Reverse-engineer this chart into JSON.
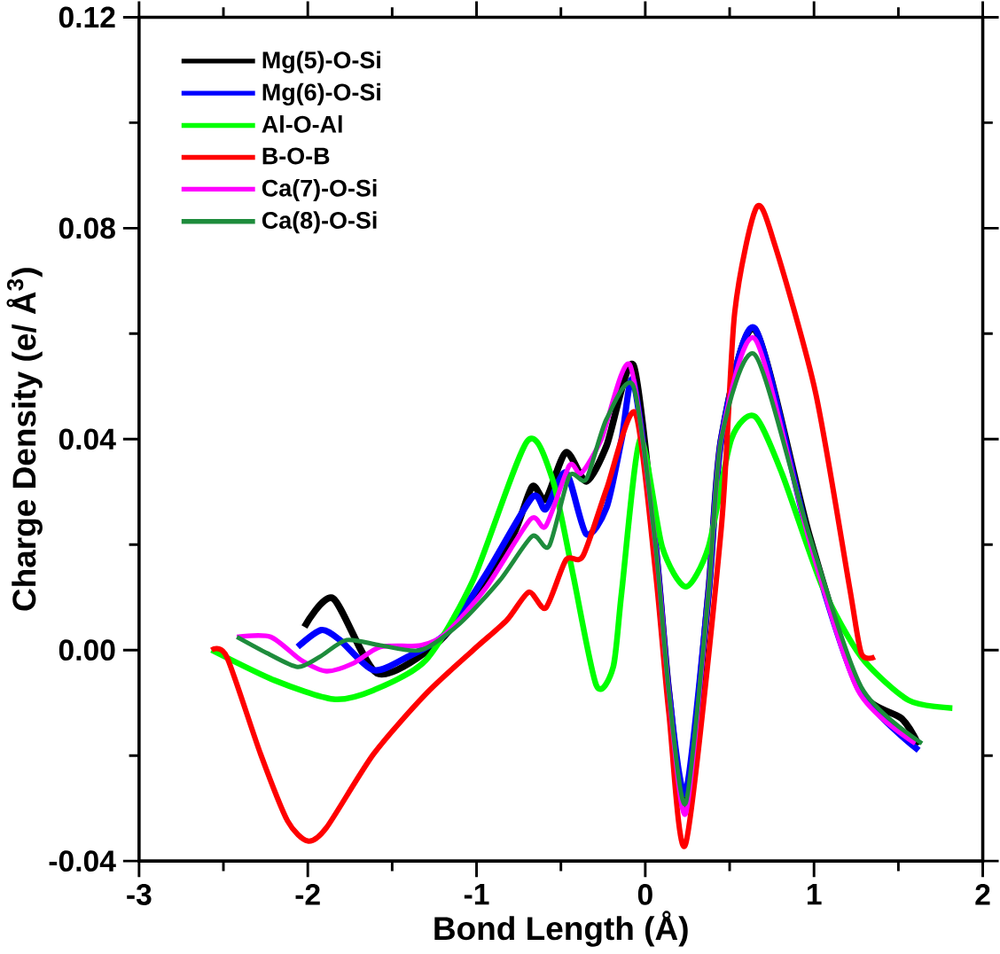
{
  "chart_data": {
    "type": "line",
    "xlabel": "Bond Length (Å)",
    "ylabel": "Charge Density (e/ Å$^{3}$)",
    "xlim": [
      -3,
      2
    ],
    "ylim": [
      -0.04,
      0.12
    ],
    "xticks": [
      -3,
      {
        "value": -2.5,
        "label": null
      },
      -2,
      {
        "value": -1.5,
        "label": null
      },
      -1,
      {
        "value": -0.5,
        "label": null
      },
      0,
      {
        "value": 0.5,
        "label": null
      },
      1,
      {
        "value": 1.5,
        "label": null
      },
      2
    ],
    "yticks": [
      {
        "value": -0.04,
        "label": "-0.04"
      },
      {
        "value": -0.02,
        "label": null
      },
      {
        "value": 0,
        "label": "0.00"
      },
      {
        "value": 0.02,
        "label": null
      },
      {
        "value": 0.04,
        "label": "0.04"
      },
      {
        "value": 0.06,
        "label": null
      },
      {
        "value": 0.08,
        "label": "0.08"
      },
      {
        "value": 0.1,
        "label": null
      },
      {
        "value": 0.12,
        "label": "0.12"
      }
    ],
    "grid": false,
    "legend": "top left",
    "marker": "none",
    "line_style": "solid",
    "series": [
      {
        "name": "Mg(5)-O-Si",
        "color": "#000000",
        "x": [
          -2.02,
          -1.85,
          -1.59,
          -1.26,
          -1.02,
          -0.78,
          -0.67,
          -0.59,
          -0.47,
          -0.35,
          -0.23,
          -0.07,
          0.06,
          0.14,
          0.24,
          0.375,
          0.45,
          0.65,
          0.97,
          1.26,
          1.52,
          1.62
        ],
        "values": [
          0.0044,
          0.0098,
          -0.0044,
          0.0006,
          0.0095,
          0.022,
          0.031,
          0.0286,
          0.0375,
          0.032,
          0.0387,
          0.054,
          0.02,
          -0.008,
          -0.03,
          0.011,
          0.04,
          0.0608,
          0.022,
          -0.007,
          -0.013,
          -0.018
        ]
      },
      {
        "name": "Mg(6)-O-Si",
        "color": "#0000ff",
        "x": [
          -2.06,
          -1.92,
          -1.81,
          -1.61,
          -1.41,
          -1.18,
          -0.94,
          -0.67,
          -0.59,
          -0.47,
          -0.35,
          -0.23,
          -0.14,
          -0.07,
          0.06,
          0.14,
          0.24,
          0.375,
          0.45,
          0.65,
          0.97,
          1.26,
          1.62
        ],
        "values": [
          0.0006,
          0.0038,
          0.0019,
          -0.0038,
          -0.0013,
          0.0032,
          0.0146,
          0.029,
          0.0267,
          0.0337,
          0.022,
          0.027,
          0.04,
          0.051,
          0.02,
          -0.008,
          -0.027,
          0.011,
          0.04,
          0.061,
          0.021,
          -0.007,
          -0.019
        ]
      },
      {
        "name": "Al-O-Al",
        "color": "#00ff00",
        "x": [
          -2.57,
          -2.2,
          -1.85,
          -1.61,
          -1.3,
          -1.02,
          -0.7,
          -0.55,
          -0.43,
          -0.29,
          -0.19,
          -0.14,
          -0.03,
          0.1,
          0.24,
          0.375,
          0.51,
          0.65,
          0.81,
          1.05,
          1.28,
          1.56,
          1.82
        ],
        "values": [
          0,
          -0.0057,
          -0.0093,
          -0.0076,
          -0.0019,
          0.0133,
          0.0396,
          0.0324,
          0.0146,
          -0.0067,
          -0.0032,
          0.011,
          0.04,
          0.0196,
          0.012,
          0.0196,
          0.04,
          0.0443,
          0.0335,
          0.012,
          -0.0013,
          -0.0095,
          -0.011
        ]
      },
      {
        "name": "B-O-B",
        "color": "#ff0000",
        "x": [
          -2.57,
          -2.48,
          -2.28,
          -2.12,
          -2.0,
          -1.89,
          -1.61,
          -1.3,
          -1.02,
          -0.82,
          -0.69,
          -0.59,
          -0.47,
          -0.37,
          -0.23,
          -0.06,
          0.06,
          0.14,
          0.24,
          0.45,
          0.53,
          0.66,
          0.77,
          1.01,
          1.21,
          1.28,
          1.36
        ],
        "values": [
          0,
          -0.0013,
          -0.0197,
          -0.0324,
          -0.0362,
          -0.0337,
          -0.0197,
          -0.0083,
          0,
          0.0057,
          0.011,
          0.008,
          0.0171,
          0.0178,
          0.0305,
          0.045,
          0.015,
          -0.012,
          -0.0367,
          0.023,
          0.064,
          0.084,
          0.0766,
          0.0487,
          0.012,
          -0.0006,
          -0.0013
        ]
      },
      {
        "name": "Ca(7)-O-Si",
        "color": "#ff00ff",
        "x": [
          -2.42,
          -2.22,
          -2.04,
          -1.89,
          -1.73,
          -1.57,
          -1.33,
          -1.18,
          -0.94,
          -0.68,
          -0.59,
          -0.45,
          -0.38,
          -0.26,
          -0.09,
          0.06,
          0.14,
          0.24,
          0.375,
          0.45,
          0.65,
          0.97,
          1.26,
          1.6
        ],
        "values": [
          0.0025,
          0.0025,
          -0.0019,
          -0.004,
          -0.0025,
          0.0006,
          0.0009,
          0.0032,
          0.012,
          0.0248,
          0.0235,
          0.035,
          0.0335,
          0.04,
          0.054,
          0.02,
          -0.008,
          -0.031,
          0.011,
          0.04,
          0.059,
          0.021,
          -0.0076,
          -0.0177
        ]
      },
      {
        "name": "Ca(8)-O-Si",
        "color": "#1e8c3c",
        "x": [
          -2.42,
          -2.24,
          -2.06,
          -1.93,
          -1.77,
          -1.57,
          -1.33,
          -1.1,
          -0.86,
          -0.67,
          -0.57,
          -0.45,
          -0.35,
          -0.23,
          -0.07,
          0.06,
          0.14,
          0.24,
          0.375,
          0.45,
          0.65,
          0.97,
          1.28,
          1.64
        ],
        "values": [
          0.0025,
          -0.0006,
          -0.0032,
          -0.0013,
          0.0019,
          0.0009,
          0,
          0.005,
          0.0133,
          0.0216,
          0.0197,
          0.033,
          0.0324,
          0.0438,
          0.05,
          0.02,
          -0.008,
          -0.029,
          0.011,
          0.04,
          0.056,
          0.022,
          -0.007,
          -0.0177
        ]
      }
    ]
  }
}
